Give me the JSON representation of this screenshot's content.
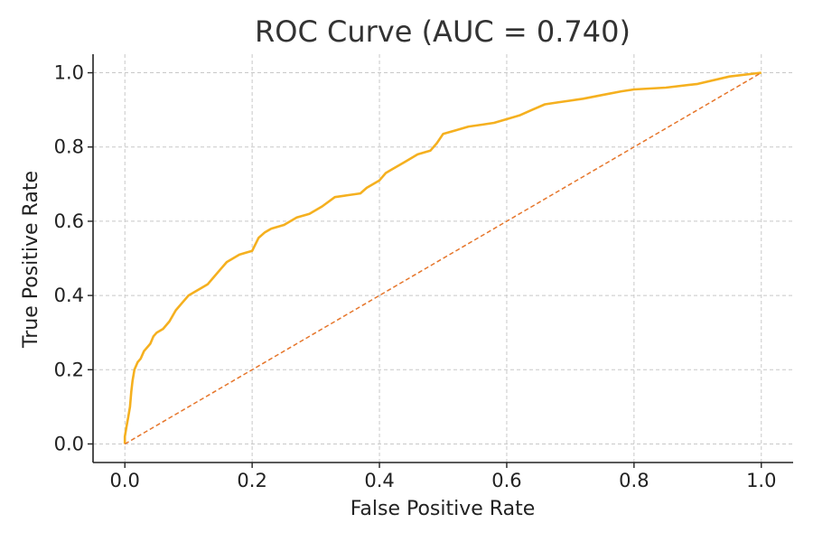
{
  "chart_data": {
    "type": "line",
    "title": "ROC Curve (AUC = 0.740)",
    "xlabel": "False Positive Rate",
    "ylabel": "True Positive Rate",
    "xlim": [
      -0.05,
      1.05
    ],
    "ylim": [
      -0.05,
      1.05
    ],
    "xticks": [
      0.0,
      0.2,
      0.4,
      0.6,
      0.8,
      1.0
    ],
    "yticks": [
      0.0,
      0.2,
      0.4,
      0.6,
      0.8,
      1.0
    ],
    "xtick_labels": [
      "0.0",
      "0.2",
      "0.4",
      "0.6",
      "0.8",
      "1.0"
    ],
    "ytick_labels": [
      "0.0",
      "0.2",
      "0.4",
      "0.6",
      "0.8",
      "1.0"
    ],
    "grid": true,
    "series": [
      {
        "style": "solid",
        "color": "#f5b01f",
        "x": [
          0.0,
          0.0,
          0.003,
          0.005,
          0.008,
          0.01,
          0.012,
          0.015,
          0.02,
          0.025,
          0.03,
          0.04,
          0.045,
          0.05,
          0.06,
          0.07,
          0.08,
          0.09,
          0.1,
          0.11,
          0.12,
          0.13,
          0.14,
          0.15,
          0.16,
          0.17,
          0.18,
          0.19,
          0.2,
          0.21,
          0.22,
          0.23,
          0.25,
          0.27,
          0.29,
          0.31,
          0.33,
          0.35,
          0.37,
          0.38,
          0.4,
          0.41,
          0.42,
          0.44,
          0.46,
          0.48,
          0.49,
          0.5,
          0.52,
          0.54,
          0.56,
          0.58,
          0.6,
          0.62,
          0.64,
          0.66,
          0.68,
          0.7,
          0.72,
          0.75,
          0.78,
          0.8,
          0.85,
          0.9,
          0.95,
          1.0
        ],
        "y": [
          0.0,
          0.02,
          0.05,
          0.07,
          0.1,
          0.14,
          0.17,
          0.2,
          0.22,
          0.23,
          0.25,
          0.27,
          0.29,
          0.3,
          0.31,
          0.33,
          0.36,
          0.38,
          0.4,
          0.41,
          0.42,
          0.43,
          0.45,
          0.47,
          0.49,
          0.5,
          0.51,
          0.515,
          0.52,
          0.555,
          0.57,
          0.58,
          0.59,
          0.61,
          0.62,
          0.64,
          0.665,
          0.67,
          0.675,
          0.69,
          0.71,
          0.73,
          0.74,
          0.76,
          0.78,
          0.79,
          0.81,
          0.835,
          0.845,
          0.855,
          0.86,
          0.865,
          0.875,
          0.885,
          0.9,
          0.915,
          0.92,
          0.925,
          0.93,
          0.94,
          0.95,
          0.955,
          0.96,
          0.97,
          0.99,
          1.0
        ]
      },
      {
        "style": "dashed",
        "color": "#e6762b",
        "x": [
          0.0,
          1.0
        ],
        "y": [
          0.0,
          1.0
        ]
      }
    ]
  }
}
